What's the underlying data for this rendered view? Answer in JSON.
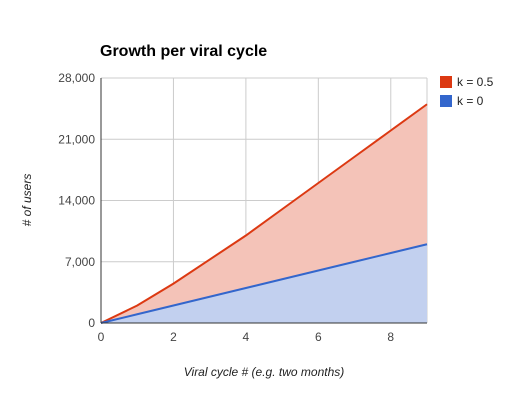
{
  "chart_data": {
    "type": "area",
    "title": "Growth per viral cycle",
    "xlabel": "Viral cycle # (e.g. two months)",
    "ylabel": "# of users",
    "x": [
      0,
      1,
      2,
      3,
      4,
      5,
      6,
      7,
      8,
      9
    ],
    "xlim": [
      0,
      9
    ],
    "ylim": [
      0,
      28000
    ],
    "x_ticks": [
      0,
      2,
      4,
      6,
      8
    ],
    "y_ticks": [
      0,
      7000,
      14000,
      21000,
      28000
    ],
    "x_tick_labels": [
      "0",
      "2",
      "4",
      "6",
      "8"
    ],
    "y_tick_labels": [
      "0",
      "7,000",
      "14,000",
      "21,000",
      "28,000"
    ],
    "grid": true,
    "legend_position": "right",
    "series": [
      {
        "name": "k = 0.5",
        "color": "#dc3912",
        "fill": "#f4c3b8",
        "values": [
          0,
          2000,
          4500,
          7250,
          10000,
          13000,
          16000,
          19000,
          22000,
          25000
        ]
      },
      {
        "name": "k = 0",
        "color": "#3366cc",
        "fill": "#c2d0ef",
        "values": [
          0,
          1000,
          2000,
          3000,
          4000,
          5000,
          6000,
          7000,
          8000,
          9000
        ]
      }
    ]
  }
}
